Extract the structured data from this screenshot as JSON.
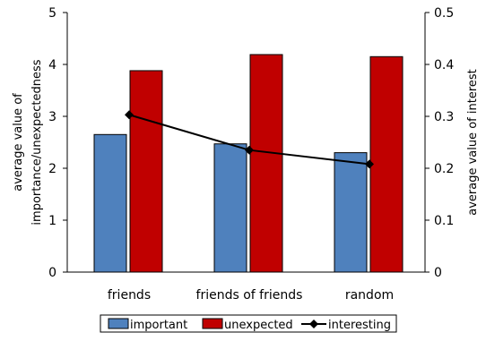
{
  "chart_data": {
    "type": "bar",
    "categories": [
      "friends",
      "friends of friends",
      "random"
    ],
    "series": [
      {
        "name": "important",
        "axis": "left",
        "kind": "bar",
        "color": "#4F81BD",
        "values": [
          2.65,
          2.47,
          2.3
        ]
      },
      {
        "name": "unexpected",
        "axis": "left",
        "kind": "bar",
        "color": "#C00000",
        "values": [
          3.88,
          4.19,
          4.15
        ]
      },
      {
        "name": "interesting",
        "axis": "right",
        "kind": "line",
        "color": "#000000",
        "values": [
          0.303,
          0.235,
          0.208
        ]
      }
    ],
    "y_left": {
      "label_line1": "average value of",
      "label_line2": "importance/unexpectedness",
      "ylim": [
        0,
        5
      ],
      "ticks": [
        "0",
        "1",
        "2",
        "3",
        "4",
        "5"
      ]
    },
    "y_right": {
      "label": "average value of interest",
      "ylim": [
        0,
        0.5
      ],
      "ticks": [
        "0",
        "0.1",
        "0.2",
        "0.3",
        "0.4",
        "0.5"
      ]
    },
    "legend": {
      "placement": "bottom",
      "items": [
        "important",
        "unexpected",
        "interesting"
      ]
    },
    "grid": false
  }
}
